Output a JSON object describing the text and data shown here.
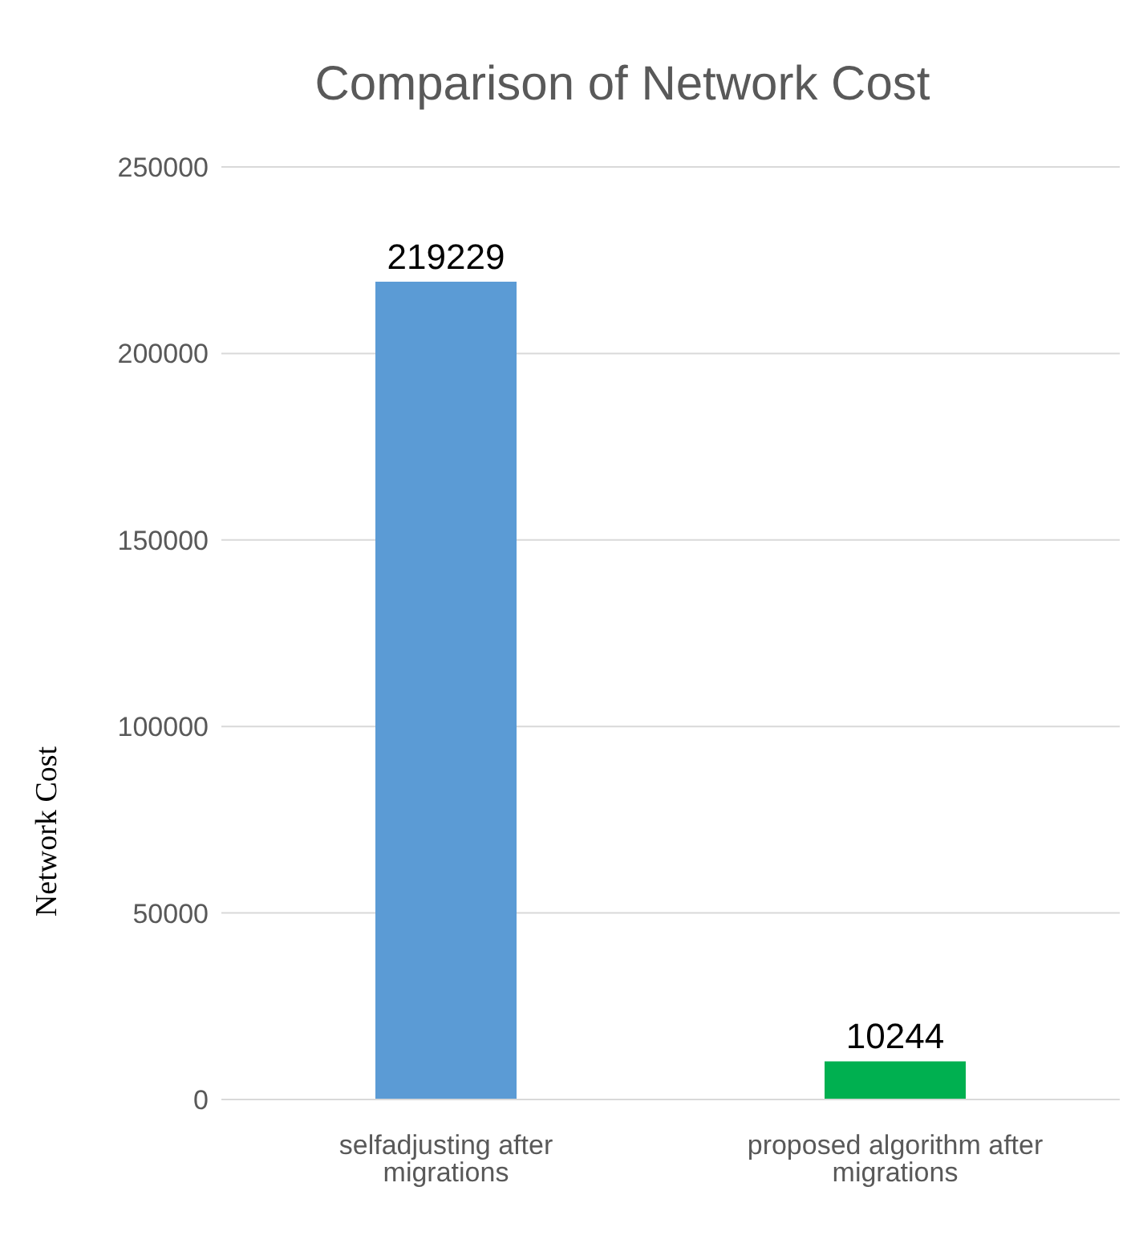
{
  "chart_data": {
    "type": "bar",
    "title": "Comparison of Network Cost",
    "ylabel": "Network Cost",
    "categories": [
      "selfadjusting after migrations",
      "proposed algorithm after migrations"
    ],
    "values": [
      219229,
      10244
    ],
    "colors": [
      "#5b9bd5",
      "#00b050"
    ],
    "ylim": [
      0,
      250000
    ],
    "yticks": [
      0,
      50000,
      100000,
      150000,
      200000,
      250000
    ],
    "grid": "y",
    "data_labels": true
  }
}
